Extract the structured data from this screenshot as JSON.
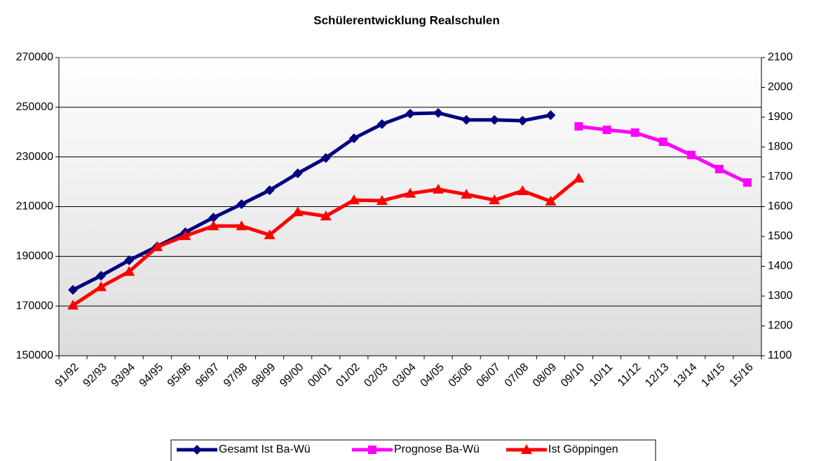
{
  "chart_data": {
    "type": "line",
    "title": "Schülerentwicklung Realschulen",
    "categories": [
      "91/92",
      "92/93",
      "93/94",
      "94/95",
      "95/96",
      "96/97",
      "97/98",
      "98/99",
      "99/00",
      "00/01",
      "01/02",
      "02/03",
      "03/04",
      "04/05",
      "05/06",
      "06/07",
      "07/08",
      "08/09",
      "09/10",
      "10/11",
      "11/12",
      "12/13",
      "13/14",
      "14/15",
      "15/16"
    ],
    "series": [
      {
        "name": "Gesamt Ist Ba-Wü",
        "color": "#000080",
        "marker": "diamond",
        "axis": "y",
        "values": [
          176500,
          182200,
          188400,
          194000,
          199700,
          205600,
          211000,
          216600,
          223400,
          229600,
          237500,
          243200,
          247400,
          247700,
          244900,
          244900,
          244600,
          246800,
          null,
          null,
          null,
          null,
          null,
          null,
          null
        ]
      },
      {
        "name": "Prognose Ba-Wü",
        "color": "#ff00ff",
        "marker": "square",
        "axis": "y",
        "values": [
          null,
          null,
          null,
          null,
          null,
          null,
          null,
          null,
          null,
          null,
          null,
          null,
          null,
          null,
          null,
          null,
          null,
          null,
          242300,
          240900,
          239800,
          236100,
          230800,
          225100,
          219700
        ]
      },
      {
        "name": "Ist Göppingen",
        "color": "#ff0000",
        "marker": "triangle",
        "axis": "y2",
        "values": [
          1269,
          1331,
          1382,
          1465,
          1502,
          1535,
          1535,
          1505,
          1582,
          1568,
          1622,
          1620,
          1644,
          1658,
          1641,
          1622,
          1653,
          1618,
          1695,
          null,
          null,
          null,
          null,
          null,
          null
        ]
      }
    ],
    "ylim": [
      150000,
      270000
    ],
    "yticks": [
      150000,
      170000,
      190000,
      210000,
      230000,
      250000,
      270000
    ],
    "y2lim": [
      1100,
      2100
    ],
    "y2ticks": [
      1100,
      1200,
      1300,
      1400,
      1500,
      1600,
      1700,
      1800,
      1900,
      2000,
      2100
    ],
    "grid": true,
    "legend": "bottom"
  }
}
